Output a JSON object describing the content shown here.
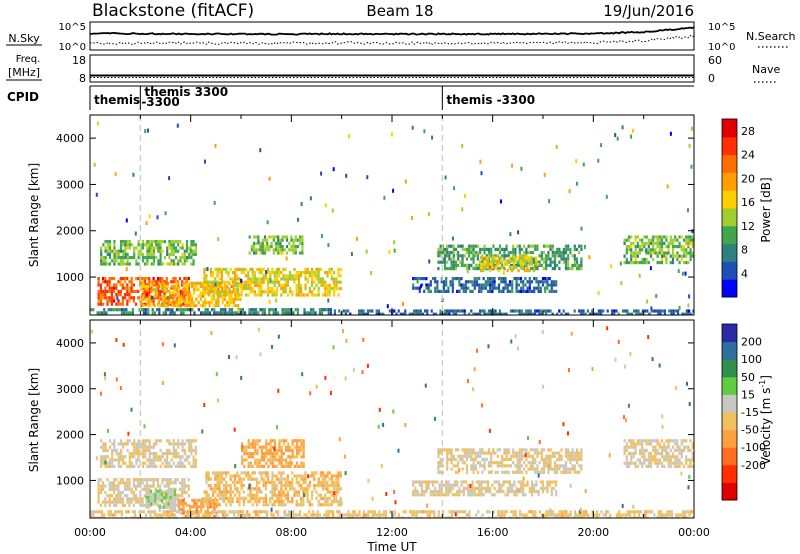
{
  "header": {
    "radar": "Blackstone (fitACF)",
    "beam": "Beam 18",
    "date": "19/Jun/2016"
  },
  "colors": {
    "power_scale": [
      "#0000ff",
      "#1f4fb4",
      "#2f7f7f",
      "#3fa64f",
      "#9fcf2f",
      "#ffcf00",
      "#ff9f00",
      "#ff6f00",
      "#ff2f00",
      "#e00000"
    ],
    "velocity_scale": [
      "#2a2aa8",
      "#2f6f9f",
      "#2f8f4f",
      "#5fcf3f",
      "#c8c8c0",
      "#f0c060",
      "#ffa040",
      "#ff7020",
      "#ff3000",
      "#e00000"
    ]
  },
  "chart_data": [
    {
      "type": "line",
      "panel": "noise",
      "left_label": "N.Sky",
      "right_label": "N.Search",
      "left_ticks": [
        "10^5",
        "10^0"
      ],
      "right_ticks": [
        "10^5",
        "10^0"
      ],
      "scale": "log",
      "series": [
        {
          "name": "N.Sky",
          "style": "solid",
          "x": [
            0,
            2,
            4,
            6,
            8,
            10,
            12,
            14,
            16,
            18,
            20,
            22,
            24
          ],
          "values": [
            1500,
            1200,
            1100,
            1000,
            1000,
            1100,
            900,
            1000,
            1000,
            1100,
            1300,
            3000,
            40000
          ]
        },
        {
          "name": "N.Search",
          "style": "dotted",
          "x": [
            0,
            2,
            4,
            6,
            8,
            10,
            12,
            14,
            16,
            18,
            20,
            22,
            24
          ],
          "values": [
            6,
            5,
            5,
            5,
            5,
            6,
            5,
            5,
            5,
            6,
            8,
            20,
            300
          ]
        }
      ]
    },
    {
      "type": "line",
      "panel": "frequency",
      "left_label": "Freq.",
      "left_unit": "[MHz]",
      "right_label": "Nave",
      "left_ticks": [
        "18",
        "8"
      ],
      "right_ticks": [
        "60",
        "0"
      ],
      "series": [
        {
          "name": "Freq.",
          "style": "solid",
          "x": [
            0,
            24
          ],
          "values": [
            10.4,
            10.4
          ]
        },
        {
          "name": "Nave",
          "style": "dotted",
          "x": [
            0,
            24
          ],
          "values": [
            10,
            10
          ]
        }
      ]
    },
    {
      "type": "table",
      "panel": "cpid",
      "label": "CPID",
      "segments": [
        {
          "start_hour": 0.0,
          "lines": [
            "themis"
          ]
        },
        {
          "start_hour": 2.0,
          "lines": [
            "themis 3300",
            "-3300"
          ]
        },
        {
          "start_hour": 14.0,
          "lines": [
            "themis -3300"
          ]
        }
      ]
    },
    {
      "type": "heatmap",
      "panel": "power",
      "ylabel": "Slant Range [km]",
      "xlim": [
        0,
        24
      ],
      "ylim": [
        180,
        4500
      ],
      "yticks": [
        "1000",
        "2000",
        "3000",
        "4000"
      ],
      "colorbar": {
        "label": "Power [dB]",
        "ticks": [
          "4",
          "8",
          "12",
          "16",
          "20",
          "24",
          "28"
        ],
        "range": [
          0,
          30
        ]
      },
      "regions": [
        {
          "t0": 0.3,
          "t1": 3.9,
          "r0": 420,
          "r1": 1000,
          "value": 24
        },
        {
          "t0": 2.0,
          "t1": 6.0,
          "r0": 400,
          "r1": 900,
          "value": 18
        },
        {
          "t0": 4.5,
          "t1": 10.0,
          "r0": 600,
          "r1": 1200,
          "value": 16
        },
        {
          "t0": 0.4,
          "t1": 4.2,
          "r0": 1300,
          "r1": 1800,
          "value": 12
        },
        {
          "t0": 6.3,
          "t1": 8.4,
          "r0": 1500,
          "r1": 1900,
          "value": 12
        },
        {
          "t0": 0.0,
          "t1": 9.6,
          "r0": 180,
          "r1": 330,
          "value": 8
        },
        {
          "t0": 9.6,
          "t1": 24.0,
          "r0": 180,
          "r1": 300,
          "value": 6
        },
        {
          "t0": 13.8,
          "t1": 19.5,
          "r0": 1200,
          "r1": 1700,
          "value": 10
        },
        {
          "t0": 15.5,
          "t1": 17.8,
          "r0": 1150,
          "r1": 1450,
          "value": 16
        },
        {
          "t0": 12.8,
          "t1": 18.5,
          "r0": 700,
          "r1": 1000,
          "value": 6
        },
        {
          "t0": 21.2,
          "t1": 24.0,
          "r0": 1300,
          "r1": 1900,
          "value": 12
        }
      ]
    },
    {
      "type": "heatmap",
      "panel": "velocity",
      "ylabel": "Slant Range [km]",
      "xlabel": "Time UT",
      "xlim": [
        0,
        24
      ],
      "ylim": [
        180,
        4500
      ],
      "yticks": [
        "1000",
        "2000",
        "3000",
        "4000"
      ],
      "xticks": [
        "00:00",
        "04:00",
        "08:00",
        "12:00",
        "16:00",
        "20:00",
        "00:00"
      ],
      "colorbar": {
        "label": "Velocity [m s",
        "label_sup": "-1",
        "label_end": "]",
        "ticks": [
          "200",
          "100",
          "50",
          "15",
          "-15",
          "-50",
          "-100",
          "-200"
        ],
        "range": [
          -250,
          250
        ]
      },
      "regions": [
        {
          "t0": 0.3,
          "t1": 3.9,
          "r0": 450,
          "r1": 1050,
          "value": 0
        },
        {
          "t0": 2.2,
          "t1": 3.4,
          "r0": 350,
          "r1": 800,
          "value": 40
        },
        {
          "t0": 3.5,
          "t1": 5.0,
          "r0": 200,
          "r1": 600,
          "value": -80
        },
        {
          "t0": 4.5,
          "t1": 10.0,
          "r0": 500,
          "r1": 1200,
          "value": -30
        },
        {
          "t0": 6.0,
          "t1": 8.5,
          "r0": 1300,
          "r1": 1900,
          "value": -60
        },
        {
          "t0": 0.4,
          "t1": 4.2,
          "r0": 1300,
          "r1": 1900,
          "value": 0
        },
        {
          "t0": 0.0,
          "t1": 24.0,
          "r0": 180,
          "r1": 350,
          "value": -20
        },
        {
          "t0": 13.8,
          "t1": 19.5,
          "r0": 1200,
          "r1": 1700,
          "value": 0
        },
        {
          "t0": 12.8,
          "t1": 18.5,
          "r0": 700,
          "r1": 1000,
          "value": 0
        },
        {
          "t0": 21.2,
          "t1": 24.0,
          "r0": 1300,
          "r1": 1900,
          "value": 0
        }
      ]
    }
  ]
}
